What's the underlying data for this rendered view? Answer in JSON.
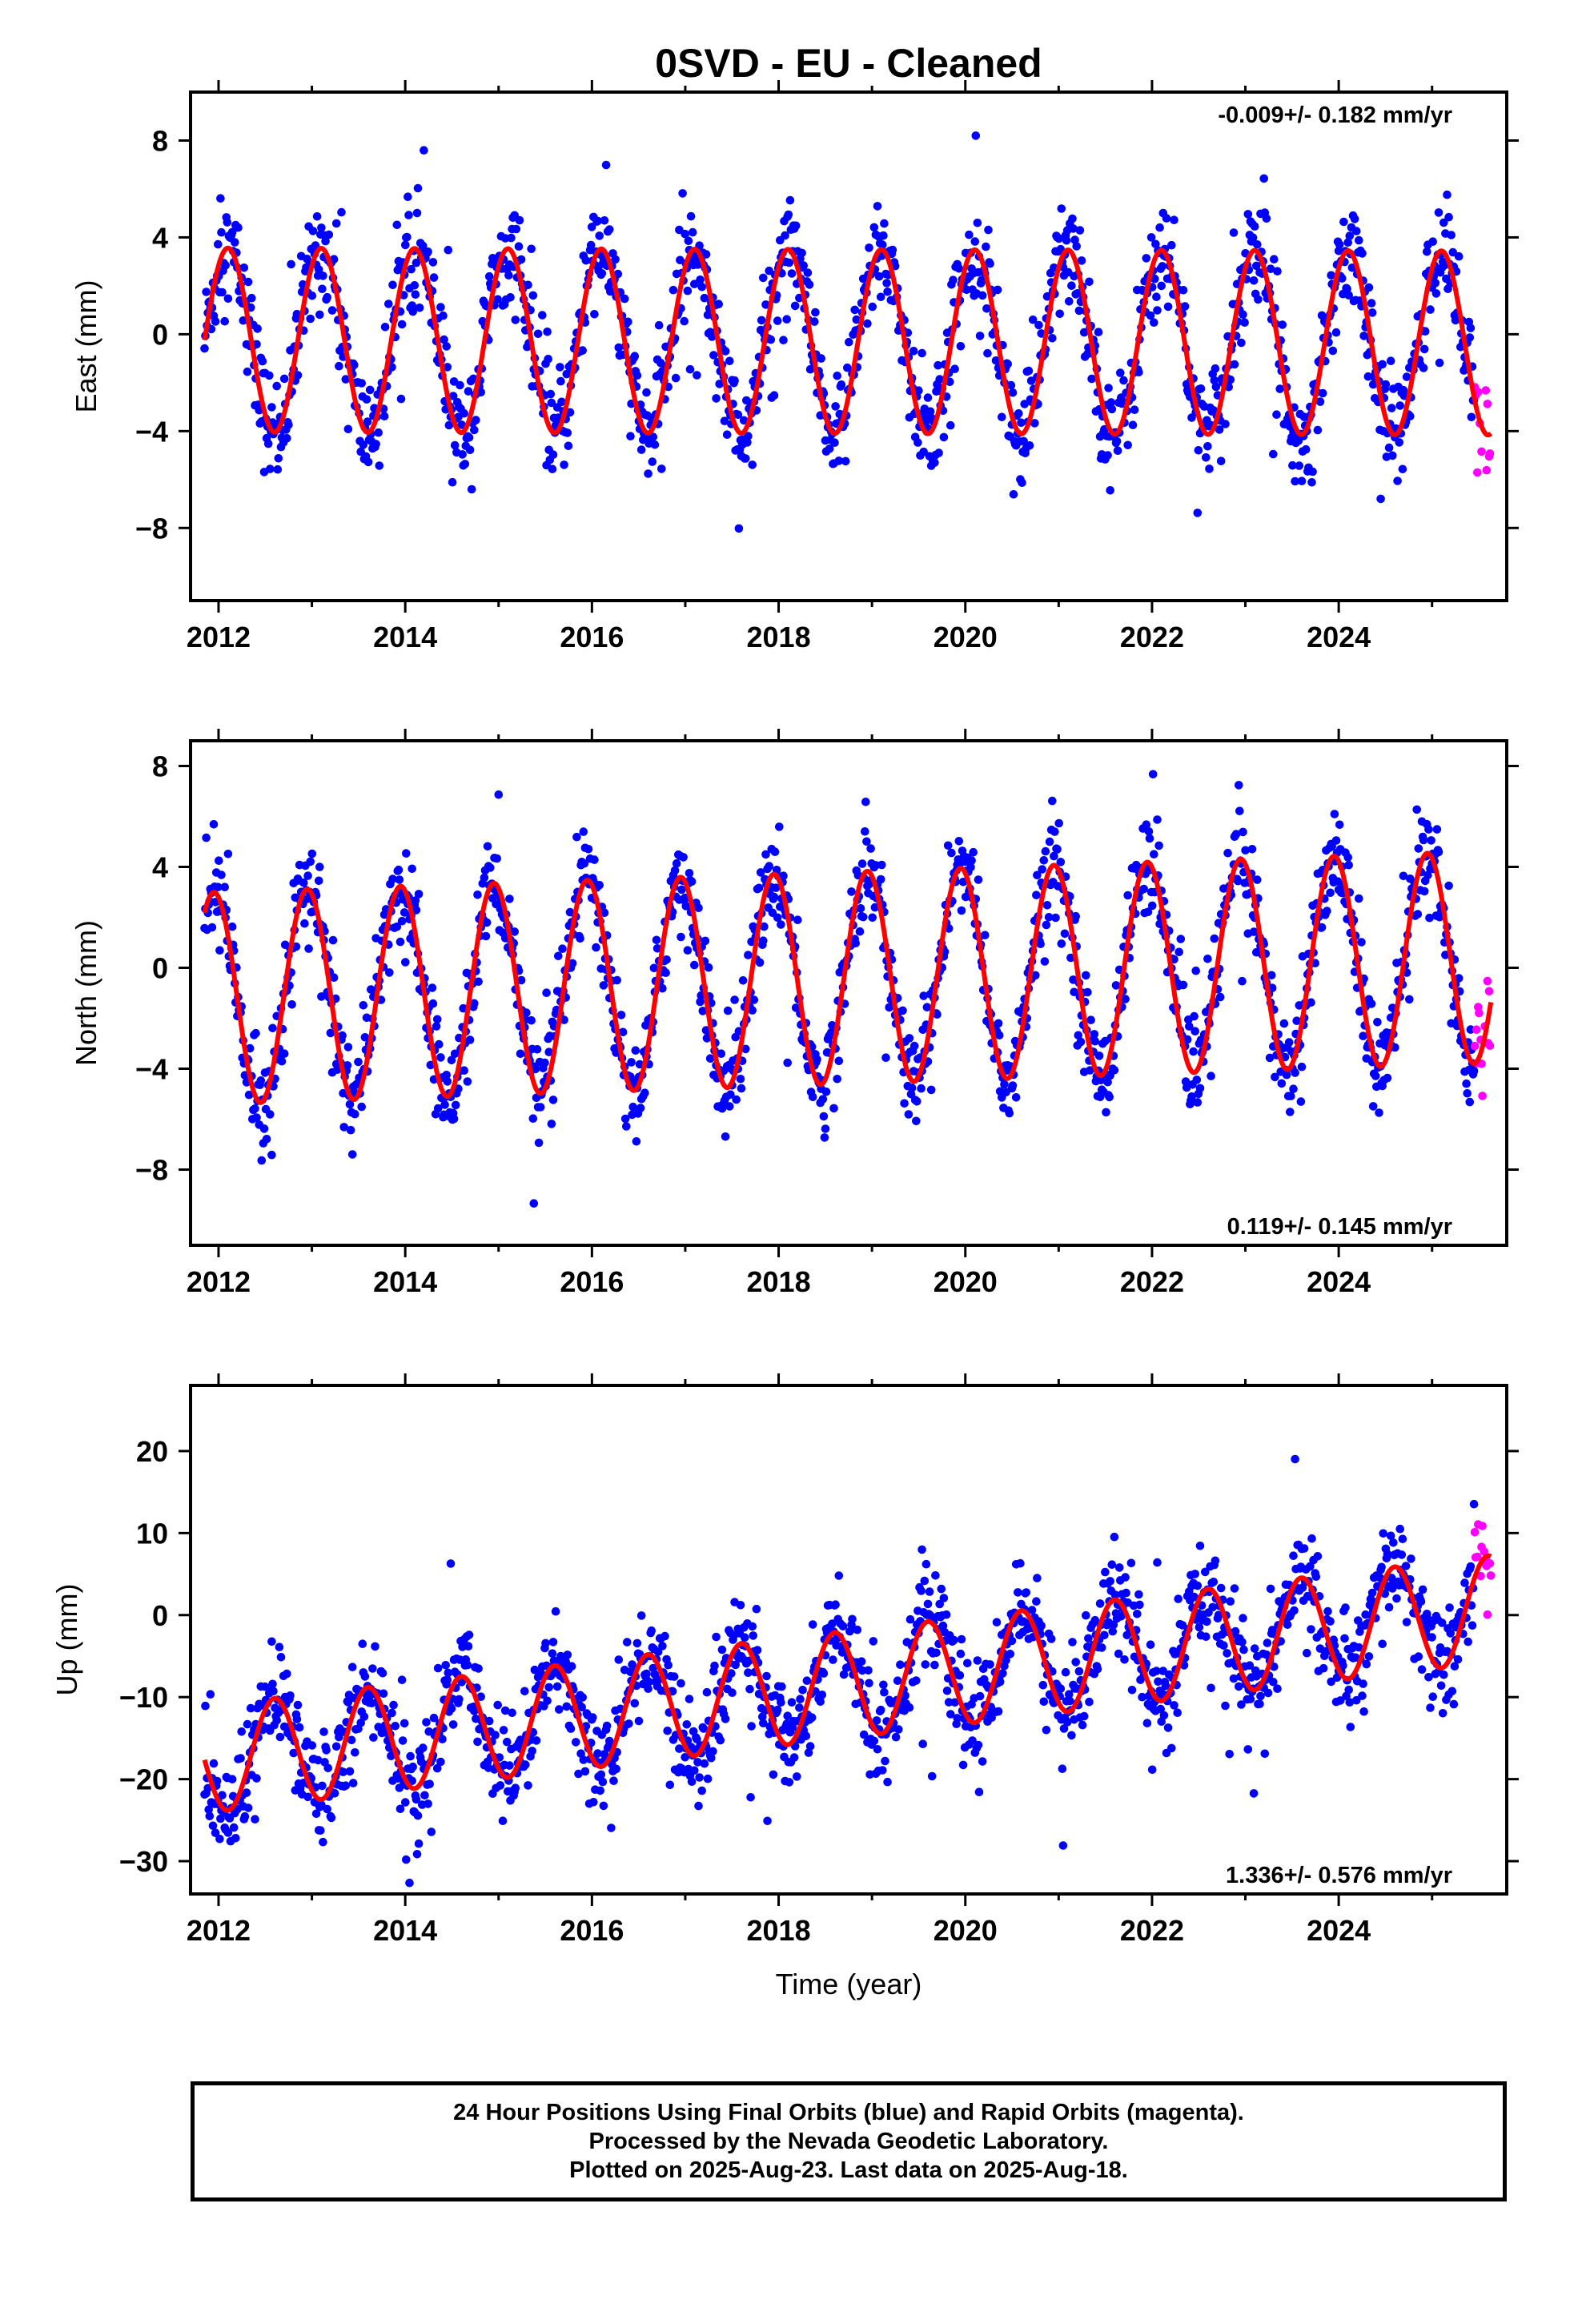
{
  "title": "0SVD  - EU - Cleaned",
  "xlabel": "Time (year)",
  "footer": {
    "line1": "24 Hour Positions Using Final Orbits (blue) and Rapid Orbits (magenta).",
    "line2": "Processed by the Nevada Geodetic Laboratory.",
    "line3": "Plotted on 2025-Aug-23. Last data on 2025-Aug-18."
  },
  "colors": {
    "final_orbits": "#0000ff",
    "rapid_orbits": "#ff00ff",
    "model_fit": "#ff0000",
    "axes": "#000000"
  },
  "chart_data": [
    {
      "type": "scatter",
      "ylabel": "East (mm)",
      "rate_label": "-0.009+/- 0.182 mm/yr",
      "rate_position": "top-right",
      "xlim": [
        2011.7,
        2025.8
      ],
      "ylim": [
        -11,
        10
      ],
      "x_ticks": [
        2012,
        2014,
        2016,
        2018,
        2020,
        2022,
        2024
      ],
      "y_ticks": [
        -8,
        -4,
        0,
        4,
        8
      ],
      "start_year": 2011.85,
      "end_year": 2025.63,
      "rapid_start": 2025.45,
      "fit": {
        "offset": -0.3,
        "trend": -0.009,
        "amplitude": 3.8,
        "phase_year": 2012.1
      },
      "scatter_spread": 1.6,
      "series": [
        {
          "name": "Final Orbits",
          "color": "#0000ff"
        },
        {
          "name": "Rapid Orbits",
          "color": "#ff00ff"
        },
        {
          "name": "Model fit",
          "color": "#ff0000"
        }
      ]
    },
    {
      "type": "scatter",
      "ylabel": "North (mm)",
      "rate_label": "0.119+/- 0.145 mm/yr",
      "rate_position": "bottom-right",
      "xlim": [
        2011.7,
        2025.8
      ],
      "ylim": [
        -11,
        9
      ],
      "x_ticks": [
        2012,
        2014,
        2016,
        2018,
        2020,
        2022,
        2024
      ],
      "y_ticks": [
        -8,
        -4,
        0,
        4,
        8
      ],
      "start_year": 2011.85,
      "end_year": 2025.63,
      "rapid_start": 2025.45,
      "fit": {
        "offset": -0.4,
        "trend": 0.119,
        "amplitude": 4.2,
        "phase_year": 2011.95
      },
      "scatter_spread": 1.4,
      "series": [
        {
          "name": "Final Orbits",
          "color": "#0000ff"
        },
        {
          "name": "Rapid Orbits",
          "color": "#ff00ff"
        },
        {
          "name": "Model fit",
          "color": "#ff0000"
        }
      ]
    },
    {
      "type": "scatter",
      "ylabel": "Up (mm)",
      "rate_label": "1.336+/- 0.576 mm/yr",
      "rate_position": "bottom-right",
      "xlim": [
        2011.7,
        2025.8
      ],
      "ylim": [
        -34,
        28
      ],
      "x_ticks": [
        2012,
        2014,
        2016,
        2018,
        2020,
        2022,
        2024
      ],
      "y_ticks": [
        -30,
        -20,
        -10,
        0,
        10,
        20
      ],
      "start_year": 2011.85,
      "end_year": 2025.63,
      "rapid_start": 2025.45,
      "fit": {
        "offset": -8.5,
        "trend": 1.336,
        "amplitude": 6.5,
        "phase_year": 2012.6
      },
      "scatter_spread": 4.5,
      "series": [
        {
          "name": "Final Orbits",
          "color": "#0000ff"
        },
        {
          "name": "Rapid Orbits",
          "color": "#ff00ff"
        },
        {
          "name": "Model fit",
          "color": "#ff0000"
        }
      ]
    }
  ]
}
